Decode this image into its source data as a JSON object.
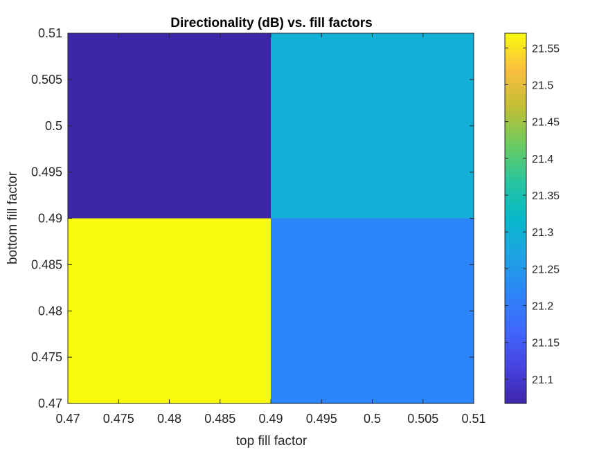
{
  "chart_data": {
    "type": "heatmap",
    "title": "Directionality (dB) vs. fill factors",
    "xlabel": "top fill factor",
    "ylabel": "bottom fill factor",
    "xlim": [
      0.47,
      0.51
    ],
    "ylim": [
      0.47,
      0.51
    ],
    "x_ticks": [
      "0.47",
      "0.475",
      "0.48",
      "0.485",
      "0.49",
      "0.495",
      "0.5",
      "0.505",
      "0.51"
    ],
    "y_ticks": [
      "0.47",
      "0.475",
      "0.48",
      "0.485",
      "0.49",
      "0.495",
      "0.5",
      "0.505",
      "0.51"
    ],
    "cells": [
      {
        "x_range": [
          0.47,
          0.49
        ],
        "y_range": [
          0.47,
          0.49
        ],
        "value": 21.57,
        "color": "#f9fb0e"
      },
      {
        "x_range": [
          0.49,
          0.51
        ],
        "y_range": [
          0.47,
          0.49
        ],
        "value": 21.2,
        "color": "#2c85f8"
      },
      {
        "x_range": [
          0.47,
          0.49
        ],
        "y_range": [
          0.49,
          0.51
        ],
        "value": 21.07,
        "color": "#3e26a8"
      },
      {
        "x_range": [
          0.49,
          0.51
        ],
        "y_range": [
          0.49,
          0.51
        ],
        "value": 21.28,
        "color": "#12b0d6"
      }
    ],
    "colorbar": {
      "range": [
        21.067,
        21.57
      ],
      "ticks": [
        "21.1",
        "21.15",
        "21.2",
        "21.25",
        "21.3",
        "21.35",
        "21.4",
        "21.45",
        "21.5",
        "21.55"
      ],
      "colormap": "parula"
    },
    "grid": false,
    "legend": "none"
  }
}
